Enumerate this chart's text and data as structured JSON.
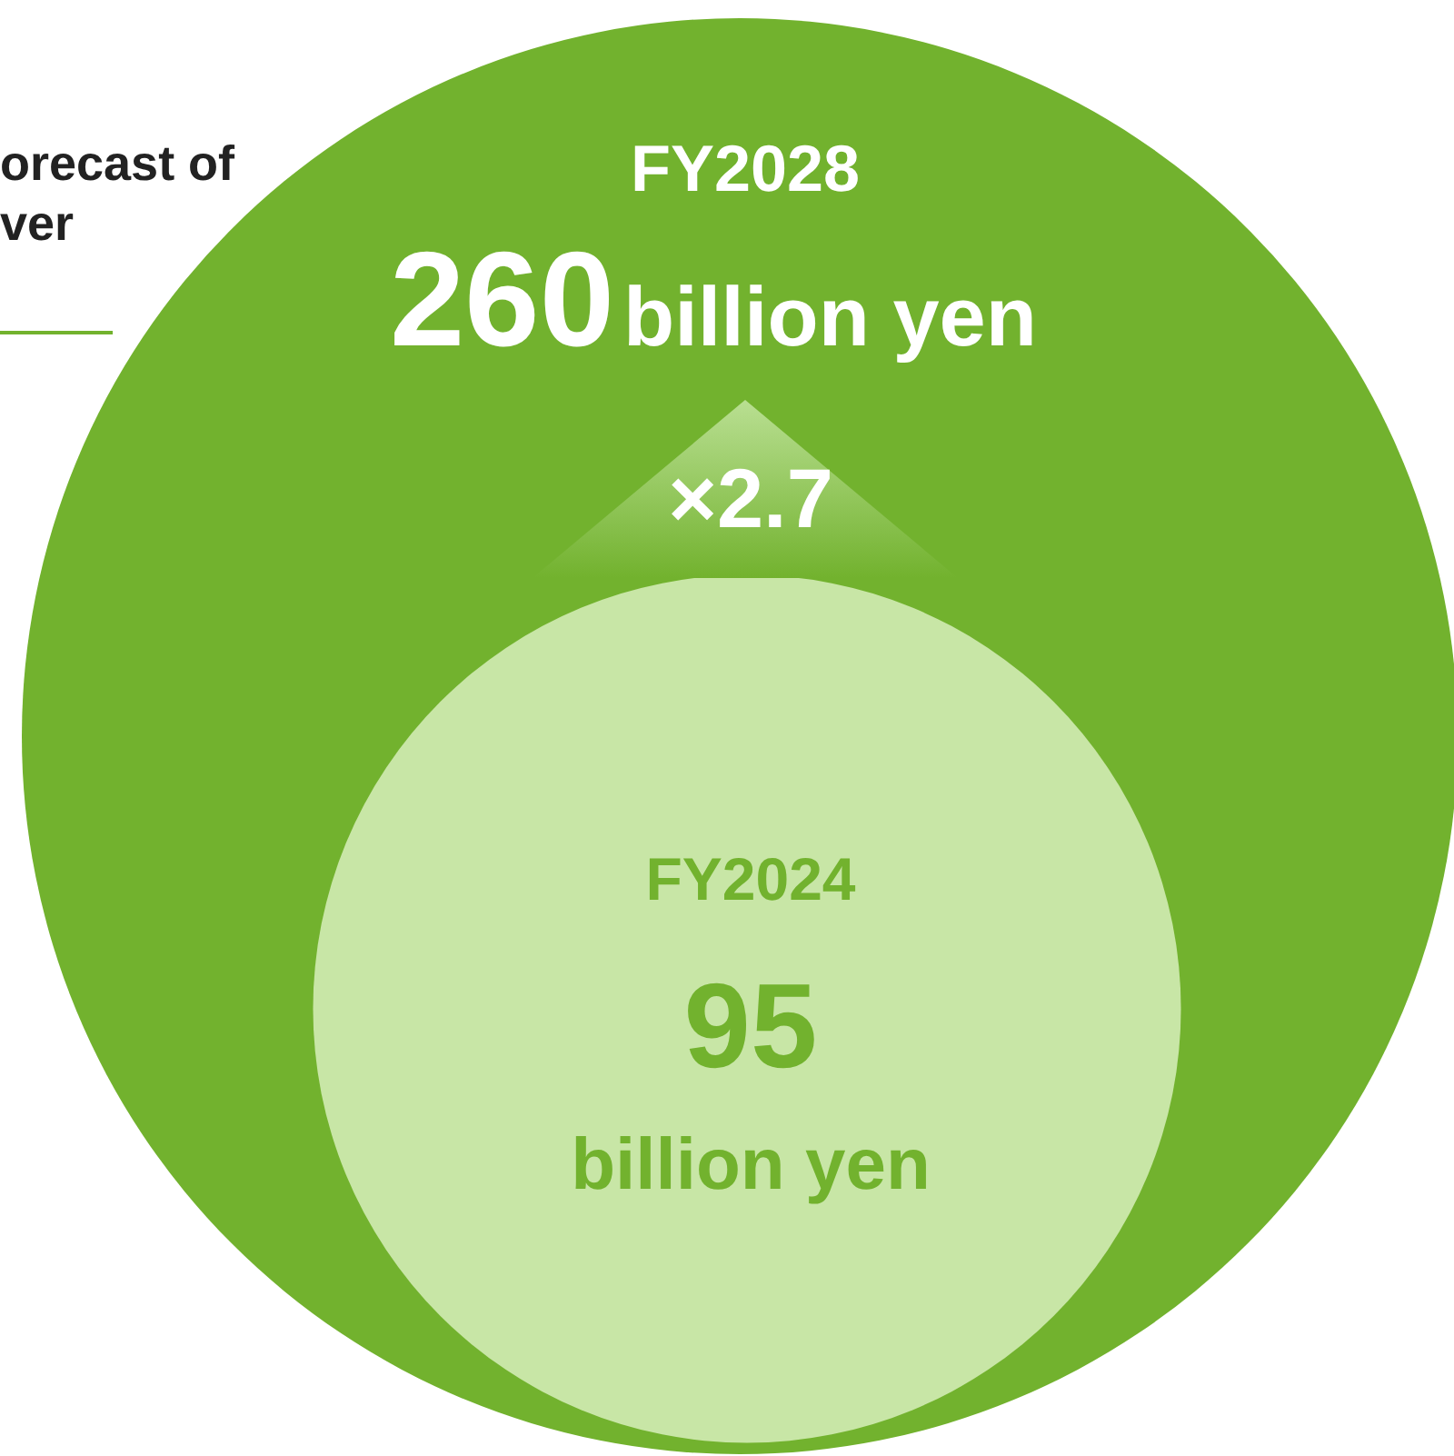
{
  "chart_data": {
    "type": "other",
    "title": "orecast of\nver",
    "categories": [
      "FY2028",
      "FY2024"
    ],
    "values": [
      260,
      95
    ],
    "colors": [
      "#72b22e",
      "#c8e6a6"
    ],
    "data_labels": true,
    "annotations": [
      "billion yen",
      "billion yen",
      "×2.7"
    ]
  }
}
